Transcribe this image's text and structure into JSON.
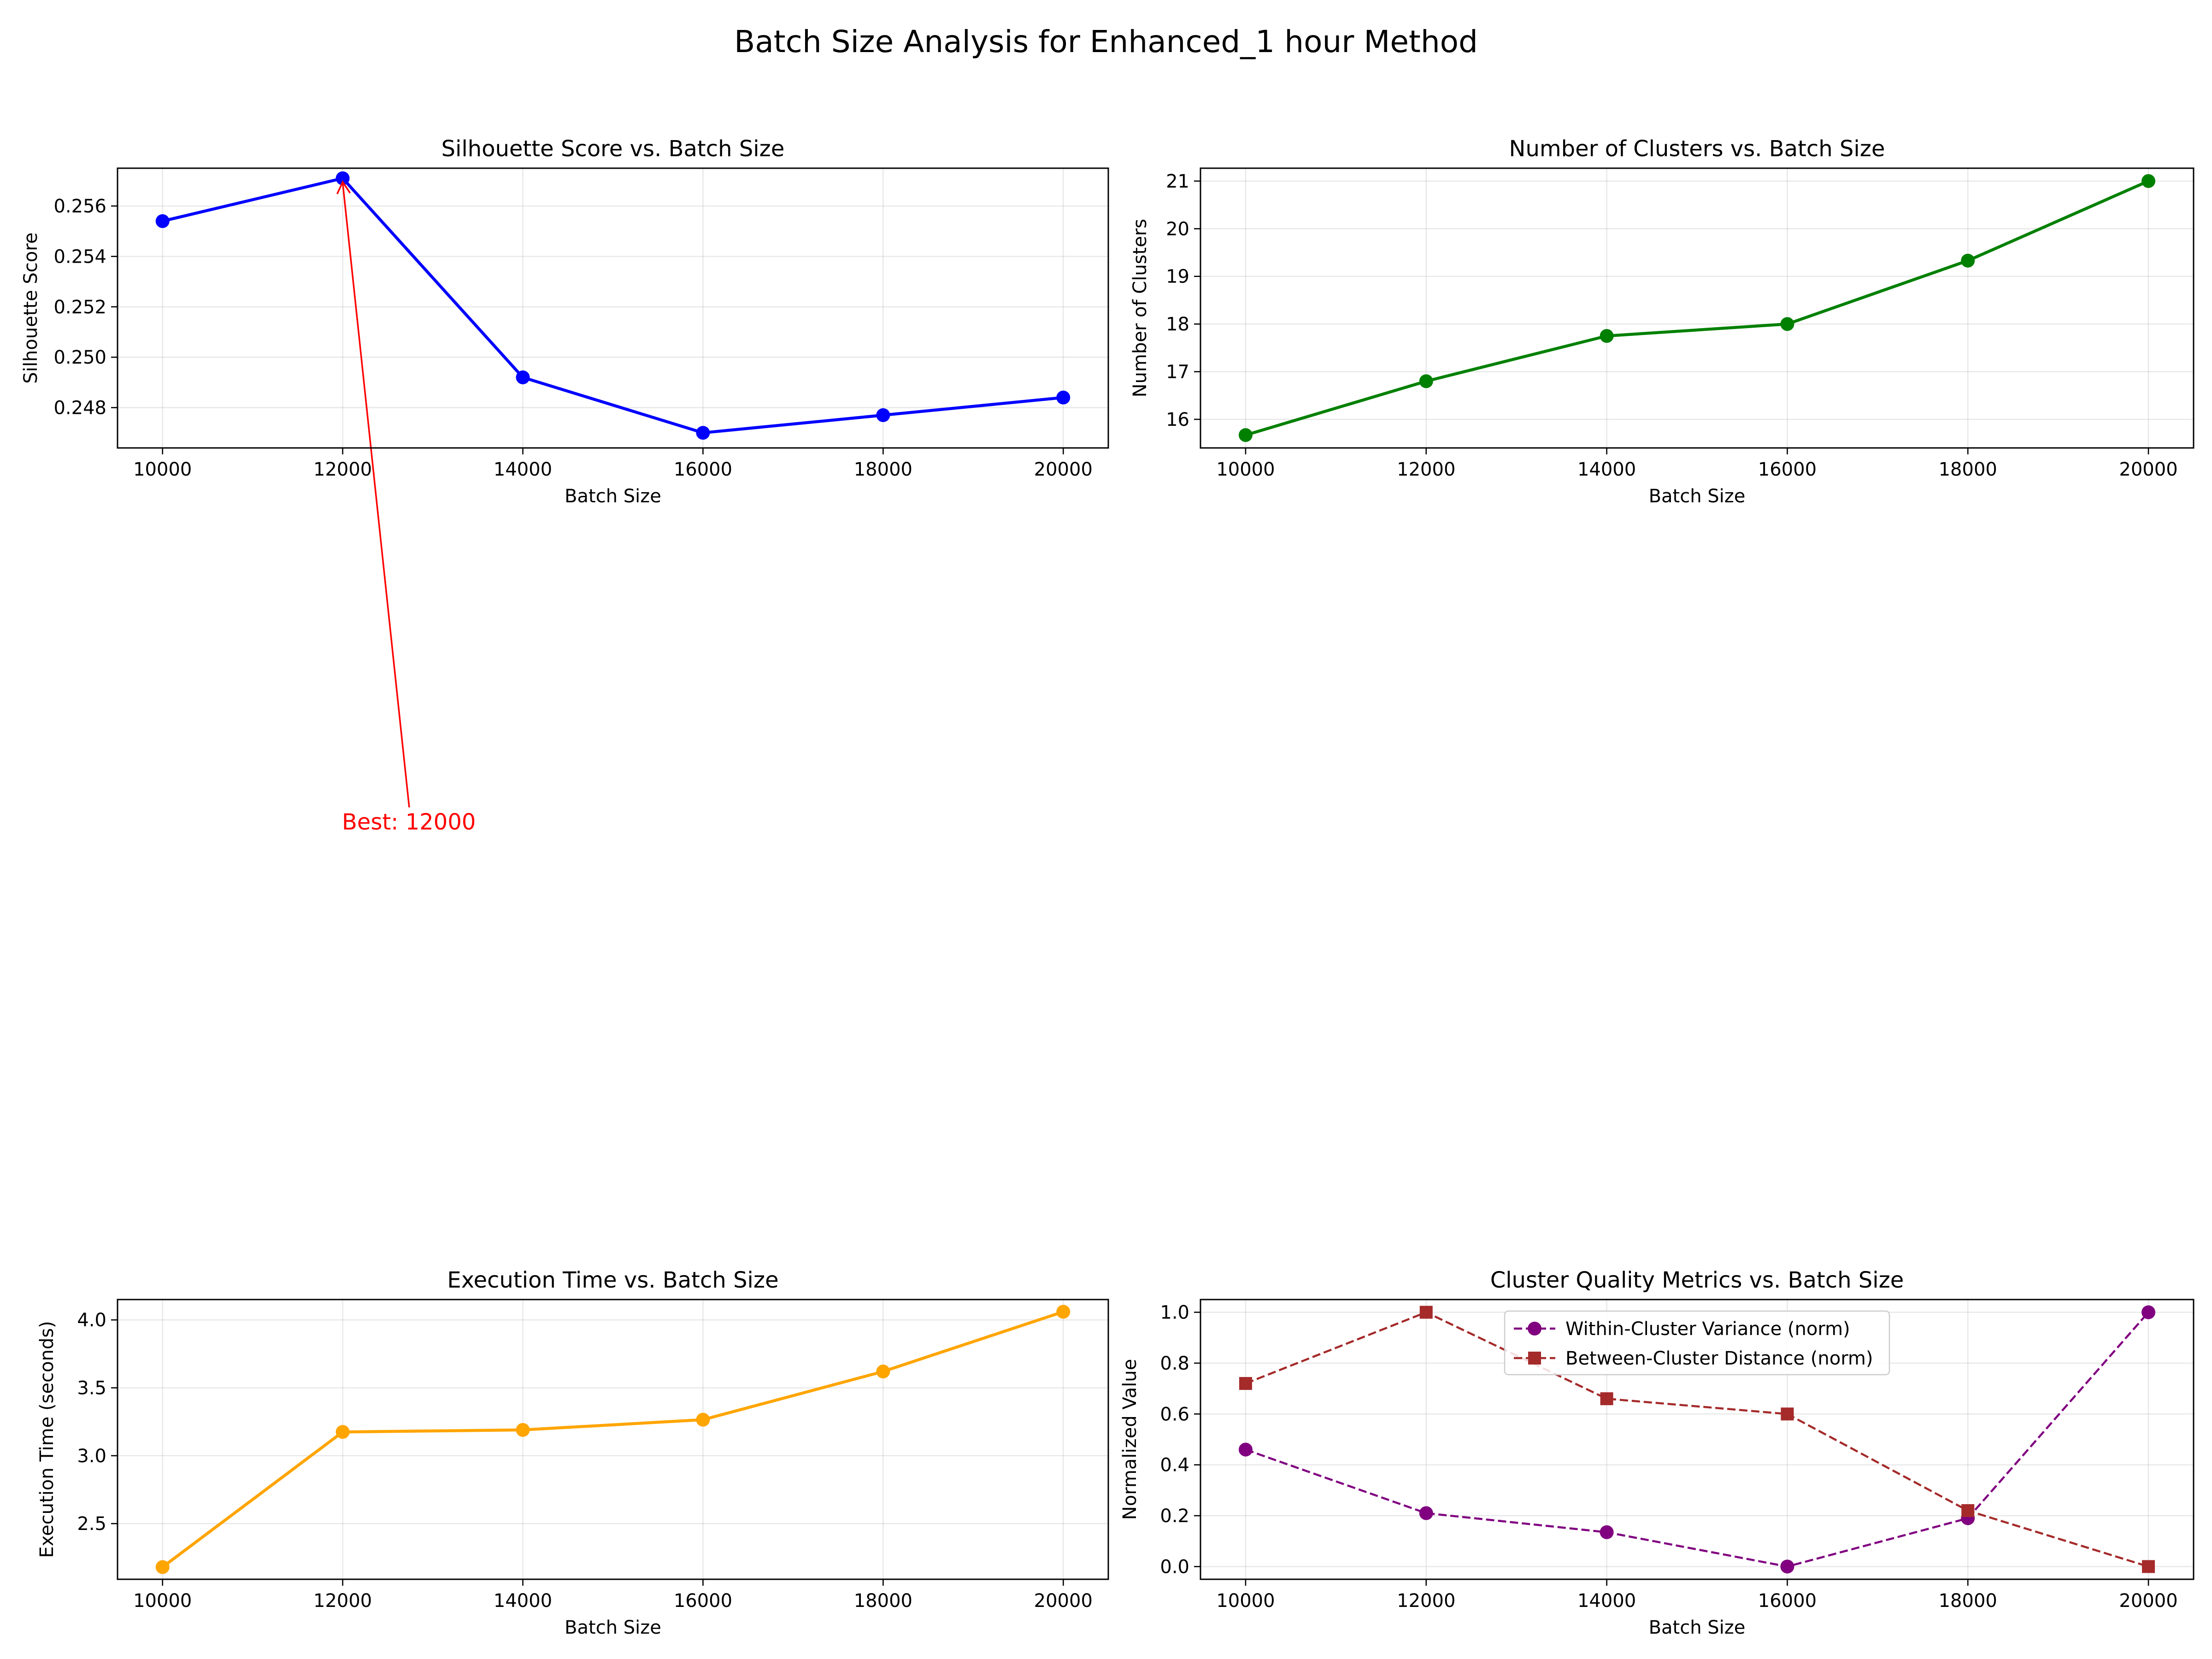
{
  "figure": {
    "suptitle": "Batch Size Analysis for Enhanced_1 hour Method"
  },
  "chart_data": [
    {
      "type": "line",
      "title": "Silhouette Score vs. Batch Size",
      "xlabel": "Batch Size",
      "ylabel": "Silhouette Score",
      "x": [
        10000,
        12000,
        14000,
        16000,
        18000,
        20000
      ],
      "series": [
        {
          "values": [
            0.2554,
            0.2571,
            0.2492,
            0.247,
            0.2477,
            0.2484
          ],
          "color": "#0000ff",
          "linestyle": "solid",
          "marker": "circle"
        }
      ],
      "xlim": [
        9500,
        20500
      ],
      "ylim": [
        0.2464,
        0.2575
      ],
      "xticks": [
        10000,
        12000,
        14000,
        16000,
        18000,
        20000
      ],
      "yticks": [
        0.248,
        0.25,
        0.252,
        0.254,
        0.256
      ],
      "ytick_decimals": 3,
      "grid": true,
      "annotation": {
        "text": "Best: 12000",
        "x": 12000,
        "y": 0.2571,
        "color": "#ff0000"
      }
    },
    {
      "type": "line",
      "title": "Number of Clusters vs. Batch Size",
      "xlabel": "Batch Size",
      "ylabel": "Number of Clusters",
      "x": [
        10000,
        12000,
        14000,
        16000,
        18000,
        20000
      ],
      "series": [
        {
          "values": [
            15.67,
            16.8,
            17.75,
            18.0,
            19.33,
            21.0
          ],
          "color": "#008000",
          "linestyle": "solid",
          "marker": "circle"
        }
      ],
      "xlim": [
        9500,
        20500
      ],
      "ylim": [
        15.4,
        21.27
      ],
      "xticks": [
        10000,
        12000,
        14000,
        16000,
        18000,
        20000
      ],
      "yticks": [
        16,
        17,
        18,
        19,
        20,
        21
      ],
      "ytick_decimals": 0,
      "grid": true
    },
    {
      "type": "line",
      "title": "Execution Time vs. Batch Size",
      "xlabel": "Batch Size",
      "ylabel": "Execution Time (seconds)",
      "x": [
        10000,
        12000,
        14000,
        16000,
        18000,
        20000
      ],
      "series": [
        {
          "values": [
            2.18,
            3.175,
            3.19,
            3.265,
            3.62,
            4.06
          ],
          "color": "#ffa500",
          "linestyle": "solid",
          "marker": "circle"
        }
      ],
      "xlim": [
        9500,
        20500
      ],
      "ylim": [
        2.09,
        4.15
      ],
      "xticks": [
        10000,
        12000,
        14000,
        16000,
        18000,
        20000
      ],
      "yticks": [
        2.5,
        3.0,
        3.5,
        4.0
      ],
      "ytick_decimals": 1,
      "grid": true
    },
    {
      "type": "line",
      "title": "Cluster Quality Metrics vs. Batch Size",
      "xlabel": "Batch Size",
      "ylabel": "Normalized Value",
      "x": [
        10000,
        12000,
        14000,
        16000,
        18000,
        20000
      ],
      "series": [
        {
          "name": "Within-Cluster Variance (norm)",
          "values": [
            0.46,
            0.21,
            0.135,
            0.0,
            0.19,
            1.0
          ],
          "color": "#800080",
          "linestyle": "dashed",
          "marker": "circle"
        },
        {
          "name": "Between-Cluster Distance (norm)",
          "values": [
            0.72,
            1.0,
            0.66,
            0.6,
            0.22,
            0.0
          ],
          "color": "#a52a2a",
          "linestyle": "dashed",
          "marker": "square"
        }
      ],
      "xlim": [
        9500,
        20500
      ],
      "ylim": [
        -0.05,
        1.05
      ],
      "xticks": [
        10000,
        12000,
        14000,
        16000,
        18000,
        20000
      ],
      "yticks": [
        0.0,
        0.2,
        0.4,
        0.6,
        0.8,
        1.0
      ],
      "ytick_decimals": 1,
      "grid": true,
      "legend": "upper-center"
    }
  ]
}
